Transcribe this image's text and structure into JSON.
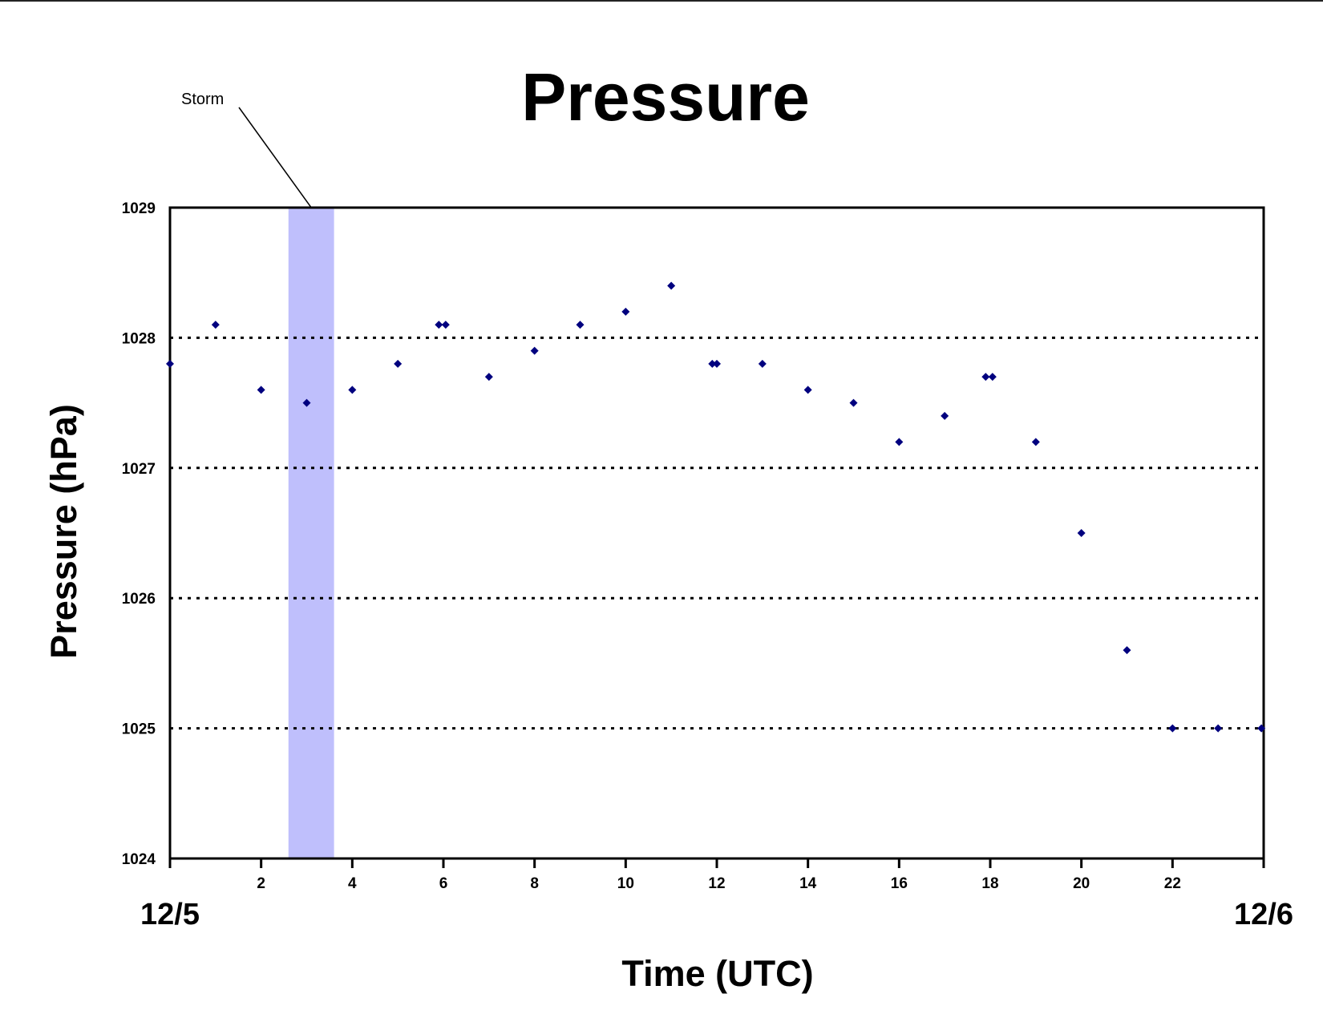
{
  "chart_data": {
    "type": "scatter",
    "title": "Pressure",
    "xlabel": "Time (UTC)",
    "ylabel": "Pressure (hPa)",
    "xlim": [
      0,
      24
    ],
    "ylim": [
      1024,
      1029
    ],
    "x_ticks": [
      2,
      4,
      6,
      8,
      10,
      12,
      14,
      16,
      18,
      20,
      22
    ],
    "y_ticks": [
      1024,
      1025,
      1026,
      1027,
      1028,
      1029
    ],
    "gridlines_y": [
      1025,
      1026,
      1027,
      1028
    ],
    "grid": "horizontal dotted",
    "legend": "none",
    "date_labels": {
      "start": "12/5",
      "end": "12/6"
    },
    "marker_color": "#00007f",
    "series": [
      {
        "x": [
          0,
          1,
          2,
          3,
          4,
          5,
          5.9,
          6.05,
          7,
          8,
          9,
          10,
          11,
          11.9,
          12,
          13,
          14,
          15,
          16,
          17,
          17.9,
          18.05,
          19,
          20,
          21,
          22,
          23,
          23.95
        ],
        "y": [
          1027.8,
          1028.1,
          1027.6,
          1027.5,
          1027.6,
          1027.8,
          1028.1,
          1028.1,
          1027.7,
          1027.9,
          1028.1,
          1028.2,
          1028.4,
          1027.8,
          1027.8,
          1027.8,
          1027.6,
          1027.5,
          1027.2,
          1027.4,
          1027.7,
          1027.7,
          1027.2,
          1026.5,
          1025.6,
          1025.0,
          1025.0,
          1025.0
        ]
      }
    ],
    "annotations": [
      {
        "label": "Storm",
        "type": "shaded-band",
        "x_start": 2.6,
        "x_end": 3.6,
        "color": "#bfbffc"
      }
    ]
  }
}
